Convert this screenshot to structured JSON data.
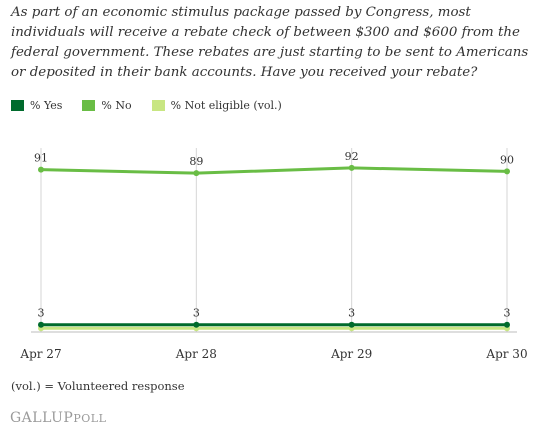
{
  "question": "As part of an economic stimulus package passed by Congress, most individuals will receive a rebate check of between $300 and $600 from the federal government. These rebates are just starting to be sent to Americans or deposited in their bank accounts. Have you received your rebate?",
  "footnote": "(vol.) = Volunteered response",
  "brand": {
    "gallup": "GALLUP",
    "poll": "POLL"
  },
  "chart_data": {
    "type": "line",
    "x": [
      "Apr 27",
      "Apr 28",
      "Apr 29",
      "Apr 30"
    ],
    "ylim": [
      0,
      100
    ],
    "grid": "vertical",
    "legend_position": "top-left",
    "series": [
      {
        "name": "% Yes",
        "values": [
          3,
          3,
          3,
          3
        ],
        "color": "#006b2d",
        "show_labels": true
      },
      {
        "name": "% No",
        "values": [
          91,
          89,
          92,
          90
        ],
        "color": "#69bd45",
        "show_labels": true
      },
      {
        "name": "% Not eligible (vol.)",
        "values": [
          1,
          1,
          1,
          1
        ],
        "color": "#c8e682",
        "show_labels": false
      }
    ]
  }
}
